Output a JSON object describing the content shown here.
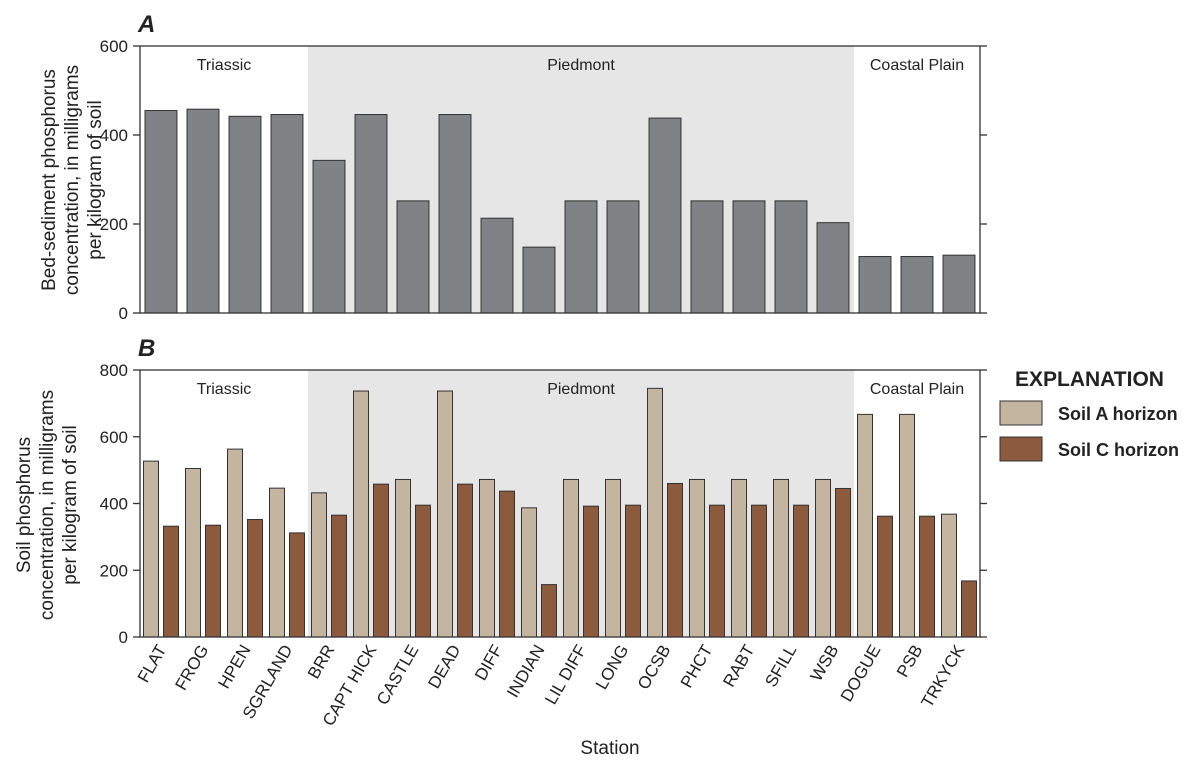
{
  "chart_data": [
    {
      "type": "bar",
      "panel_label": "A",
      "ylabel_lines": [
        "Bed-sediment phosphorus",
        "concentration, in milligrams",
        "per kilogram of soil"
      ],
      "ylim": [
        0,
        600
      ],
      "yticks": [
        "0",
        "200",
        "400",
        "600"
      ],
      "categories": [
        "FLAT",
        "FROG",
        "HPEN",
        "SGRLAND",
        "BRR",
        "CAPT HICK",
        "CASTLE",
        "DEAD",
        "DIFF",
        "INDIAN",
        "LIL DIFF",
        "LONG",
        "OCSB",
        "PHCT",
        "RABT",
        "SFILL",
        "WSB",
        "DOGUE",
        "PSB",
        "TRKYCK"
      ],
      "series": [
        {
          "name": "Bed sediment",
          "color": "#818285",
          "values": [
            455,
            458,
            442,
            446,
            343,
            446,
            252,
            446,
            213,
            148,
            252,
            252,
            438,
            252,
            252,
            252,
            203,
            127,
            127,
            130
          ]
        }
      ],
      "regions": [
        {
          "label": "Triassic",
          "start": 0,
          "end": 3,
          "shaded": false
        },
        {
          "label": "Piedmont",
          "start": 4,
          "end": 16,
          "shaded": true
        },
        {
          "label": "Coastal Plain",
          "start": 17,
          "end": 19,
          "shaded": false
        }
      ]
    },
    {
      "type": "bar",
      "panel_label": "B",
      "ylabel_lines": [
        "Soil phosphorus",
        "concentration, in milligrams",
        "per kilogram of soil"
      ],
      "ylim": [
        0,
        800
      ],
      "yticks": [
        "0",
        "200",
        "400",
        "600",
        "800"
      ],
      "xlabel": "Station",
      "categories": [
        "FLAT",
        "FROG",
        "HPEN",
        "SGRLAND",
        "BRR",
        "CAPT HICK",
        "CASTLE",
        "DEAD",
        "DIFF",
        "INDIAN",
        "LIL DIFF",
        "LONG",
        "OCSB",
        "PHCT",
        "RABT",
        "SFILL",
        "WSB",
        "DOGUE",
        "PSB",
        "TRKYCK"
      ],
      "series": [
        {
          "name": "Soil A horizon",
          "color": "#c3b5a0",
          "values": [
            527,
            505,
            563,
            446,
            432,
            737,
            472,
            737,
            472,
            387,
            472,
            472,
            745,
            472,
            472,
            472,
            472,
            667,
            667,
            368
          ]
        },
        {
          "name": "Soil C horizon",
          "color": "#8c5a3c",
          "values": [
            332,
            335,
            352,
            312,
            365,
            458,
            395,
            458,
            437,
            157,
            392,
            395,
            460,
            395,
            395,
            395,
            445,
            362,
            362,
            168
          ]
        }
      ],
      "regions": [
        {
          "label": "Triassic",
          "start": 0,
          "end": 3,
          "shaded": false
        },
        {
          "label": "Piedmont",
          "start": 4,
          "end": 16,
          "shaded": true
        },
        {
          "label": "Coastal Plain",
          "start": 17,
          "end": 19,
          "shaded": false
        }
      ]
    }
  ],
  "legend": {
    "title": "EXPLANATION",
    "items": [
      {
        "label": "Soil A horizon",
        "color": "#c3b5a0"
      },
      {
        "label": "Soil C horizon",
        "color": "#8c5a3c"
      }
    ]
  }
}
